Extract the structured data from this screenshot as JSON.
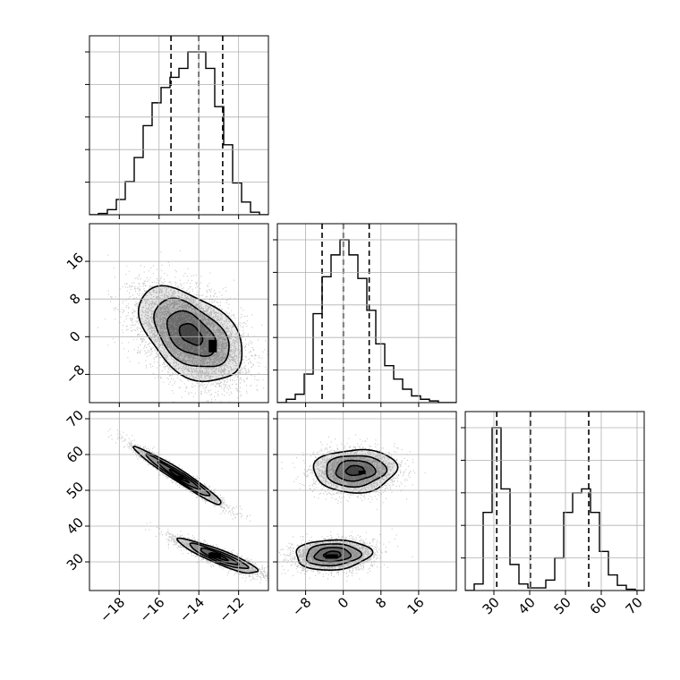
{
  "chart_data": {
    "type": "corner",
    "title": "",
    "params": [
      {
        "index": 0,
        "range": [
          -19.5,
          -10.5
        ],
        "ticks": [
          -18,
          -16,
          -14,
          -12
        ],
        "tick_labels": [
          "−18",
          "−16",
          "−14",
          "−12"
        ],
        "quantile_lines": [
          -15.4,
          -14.0,
          -12.8
        ]
      },
      {
        "index": 1,
        "range": [
          -14,
          24
        ],
        "ticks": [
          -8,
          0,
          8,
          16
        ],
        "tick_labels": [
          "−8",
          "0",
          "8",
          "16"
        ],
        "quantile_lines": [
          -4.5,
          0,
          5.5
        ]
      },
      {
        "index": 2,
        "range": [
          22,
          72
        ],
        "ticks": [
          30,
          40,
          50,
          60,
          70
        ],
        "tick_labels": [
          "30",
          "40",
          "50",
          "60",
          "70"
        ],
        "quantile_lines": [
          30.8,
          40.2,
          56.5
        ]
      }
    ],
    "histograms": [
      {
        "param": 0,
        "bin_edges": [
          -19.5,
          -19.05,
          -18.6,
          -18.15,
          -17.7,
          -17.25,
          -16.8,
          -16.35,
          -15.9,
          -15.45,
          -15.0,
          -14.55,
          -14.1,
          -13.65,
          -13.2,
          -12.75,
          -12.3,
          -11.85,
          -11.4,
          -10.95,
          -10.5
        ],
        "counts": [
          0,
          1,
          4,
          12,
          26,
          45,
          70,
          88,
          100,
          108,
          115,
          128,
          128,
          115,
          85,
          55,
          25,
          10,
          2,
          0
        ]
      },
      {
        "param": 1,
        "bin_edges": [
          -14,
          -12.1,
          -10.2,
          -8.3,
          -6.4,
          -4.5,
          -2.6,
          -0.7,
          1.2,
          3.1,
          5.0,
          6.9,
          8.8,
          10.7,
          12.6,
          14.5,
          16.4,
          18.3,
          20.2,
          22.1,
          24.0
        ],
        "counts": [
          0,
          2,
          5,
          17,
          53,
          75,
          88,
          97,
          88,
          74,
          55,
          35,
          22,
          14,
          8,
          4,
          2,
          1,
          0,
          0
        ]
      },
      {
        "param": 2,
        "bin_edges": [
          22,
          24.5,
          27,
          29.5,
          32,
          34.5,
          37,
          39.5,
          42,
          44.5,
          47,
          49.5,
          52,
          54.5,
          57,
          59.5,
          62,
          64.5,
          67,
          69.5,
          72
        ],
        "counts": [
          0,
          5,
          60,
          125,
          78,
          20,
          5,
          2,
          2,
          8,
          25,
          60,
          75,
          78,
          60,
          30,
          12,
          4,
          1,
          0
        ]
      }
    ],
    "scatter_panels": [
      {
        "x_param": 0,
        "y_param": 1,
        "contour_levels": 4
      },
      {
        "x_param": 0,
        "y_param": 2,
        "contour_levels": 4
      },
      {
        "x_param": 1,
        "y_param": 2,
        "contour_levels": 4
      }
    ],
    "grid": true
  }
}
